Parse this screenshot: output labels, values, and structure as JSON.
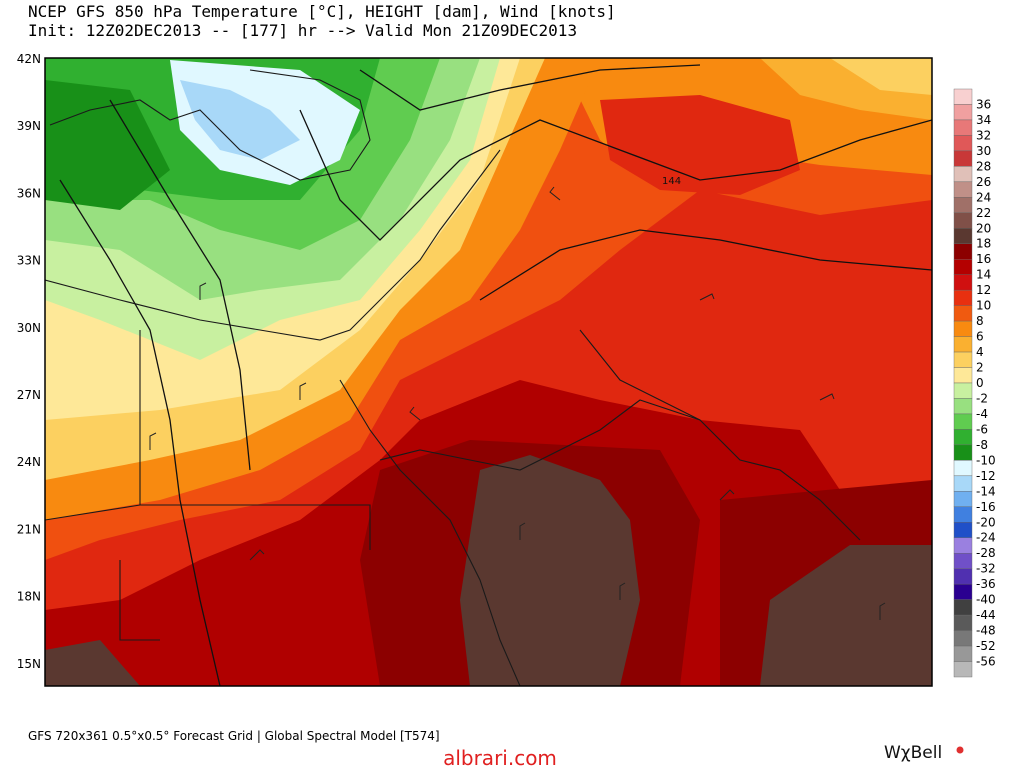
{
  "header": {
    "title": "NCEP GFS 850 hPa Temperature [°C], HEIGHT [dam], Wind [knots]",
    "subtitle": "Init: 12Z02DEC2013 -- [177] hr --> Valid Mon 21Z09DEC2013"
  },
  "map": {
    "lat_labels": [
      "42N",
      "39N",
      "36N",
      "33N",
      "30N",
      "27N",
      "24N",
      "21N",
      "18N",
      "15N"
    ],
    "contour_labels": [
      144
    ]
  },
  "colorbar": {
    "labels": [
      36,
      34,
      32,
      30,
      28,
      26,
      24,
      22,
      20,
      18,
      16,
      14,
      12,
      10,
      8,
      6,
      4,
      2,
      0,
      -2,
      -4,
      -6,
      -8,
      -10,
      -12,
      -14,
      -16,
      -20,
      -24,
      -28,
      -32,
      -36,
      -40,
      -44,
      -48,
      -52,
      -56
    ]
  },
  "footer": {
    "grid_info": "GFS 720x361 0.5°x0.5° Forecast Grid | Global Spectral Model [T574]",
    "watermark": "albrari.com",
    "logo": "WχBell"
  }
}
